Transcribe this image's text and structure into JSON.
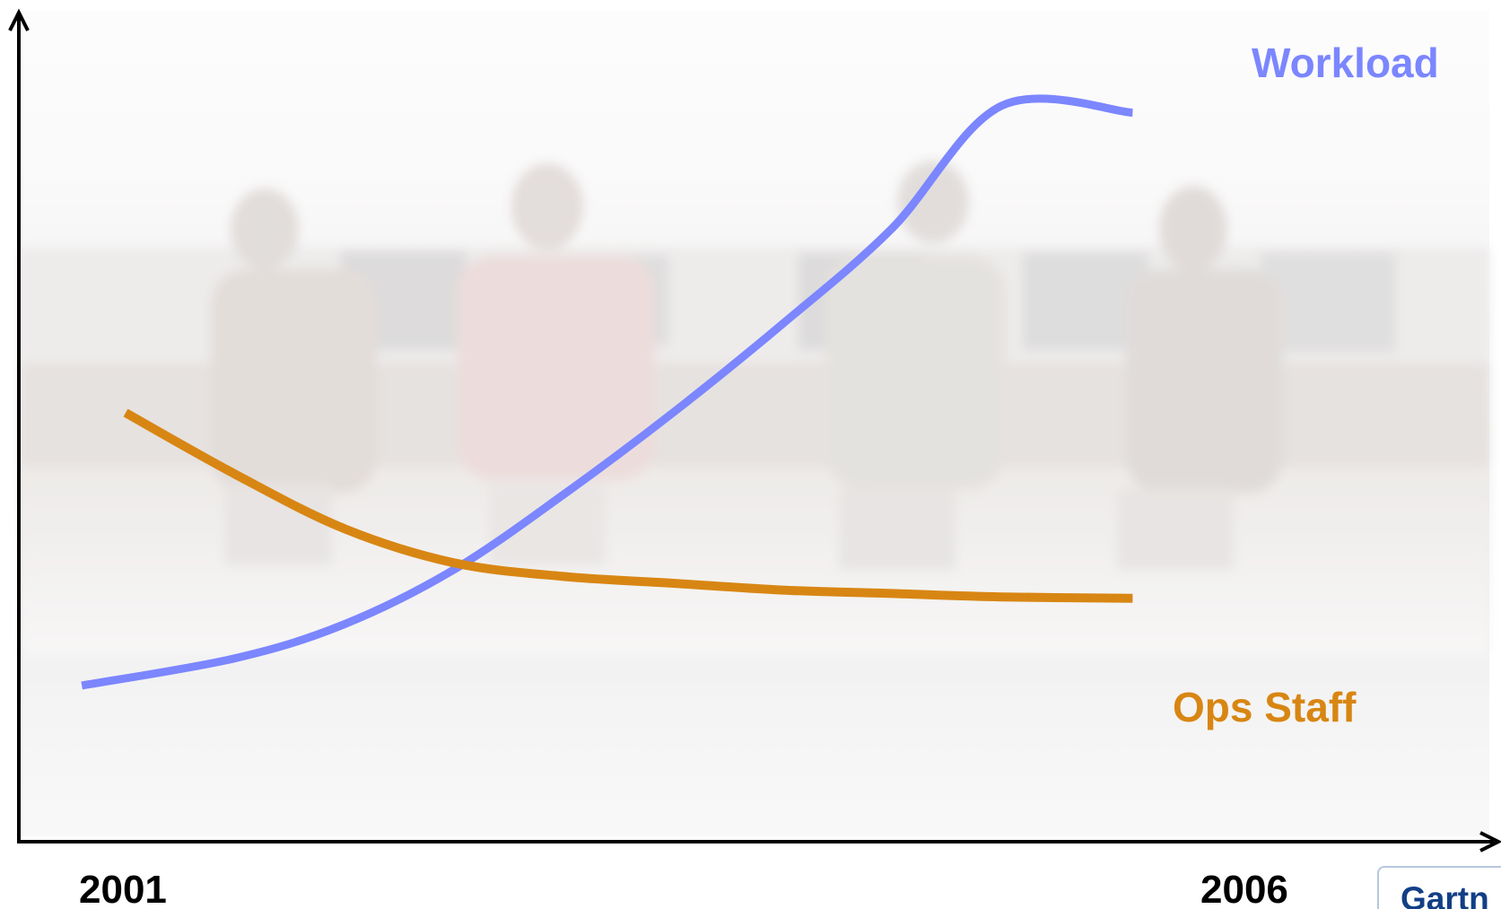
{
  "chart_data": {
    "type": "line",
    "x_tick_labels": [
      "2001",
      "2006"
    ],
    "xlim": [
      2001,
      2006
    ],
    "ylim": [
      0,
      100
    ],
    "grid": false,
    "axes": {
      "x_arrow": true,
      "y_arrow": true,
      "ticks": false
    },
    "series": [
      {
        "name": "Workload",
        "color": "#7b86ff",
        "x": [
          2000.8,
          2001.5,
          2002.0,
          2002.5,
          2003.0,
          2003.5,
          2004.0,
          2004.5,
          2005.0,
          2005.6
        ],
        "y": [
          10,
          14,
          19,
          27,
          38,
          50,
          63,
          77,
          95,
          94
        ]
      },
      {
        "name": "Ops Staff",
        "color": "#d88613",
        "x": [
          2001.0,
          2001.5,
          2002.0,
          2002.5,
          2003.0,
          2003.5,
          2004.0,
          2004.5,
          2005.0,
          2005.6
        ],
        "y": [
          50,
          41,
          33,
          28,
          26,
          25,
          24,
          23.5,
          23,
          22.8
        ]
      }
    ],
    "legend_labels": [
      {
        "text": "Workload",
        "color": "#7b86ff",
        "placement": "top-right"
      },
      {
        "text": "Ops Staff",
        "color": "#d88613",
        "placement": "right"
      }
    ]
  },
  "background": {
    "description_icon": "office-photo-background"
  },
  "logo": {
    "text": "Gartn",
    "color": "#123f86"
  }
}
